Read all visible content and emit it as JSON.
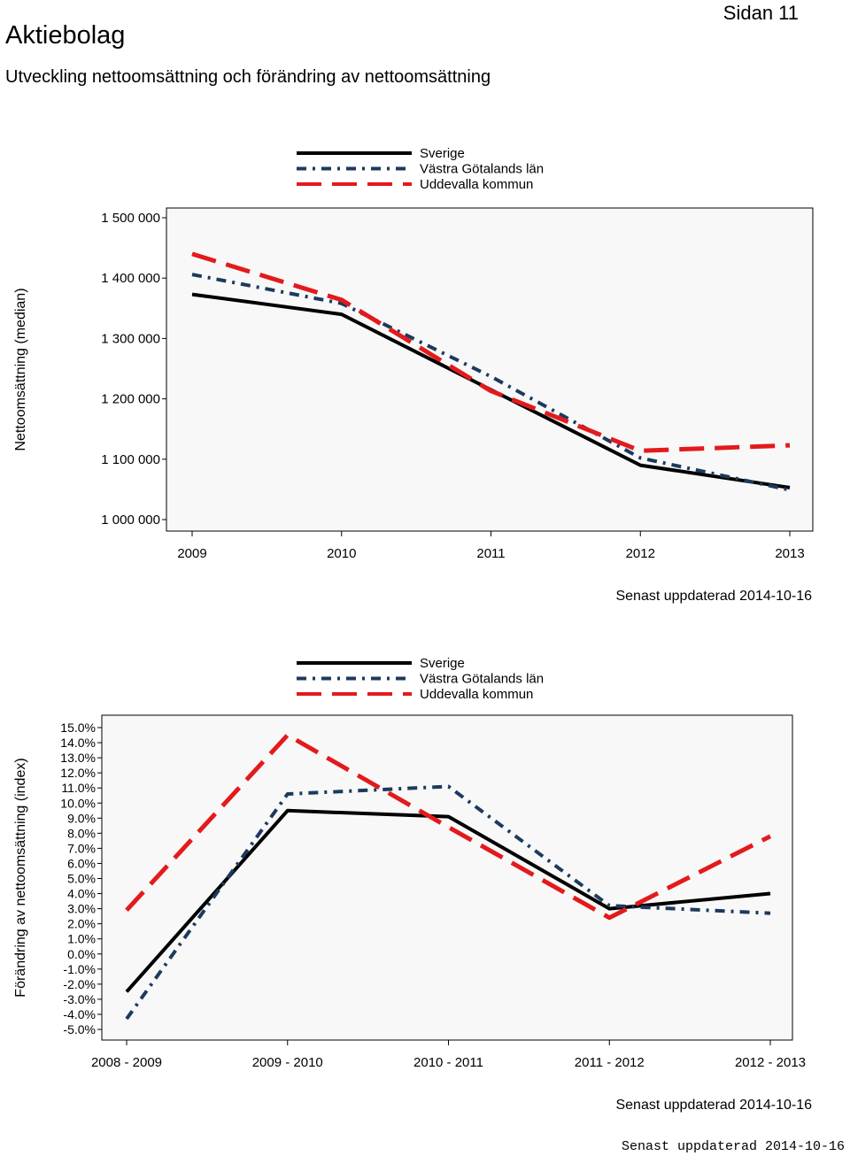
{
  "header": {
    "title": "Aktiebolag",
    "page_number": "Sidan 11",
    "subtitle": "Utveckling nettoomsättning och förändring av nettoomsättning"
  },
  "footer": {
    "stamp": "Senast uppdaterad 2014-10-16"
  },
  "colors": {
    "sverige": "#000000",
    "vastra_gotaland": "#1c3a5e",
    "uddevalla": "#e31a1c",
    "plot_background": "#f8f8f8"
  },
  "chart_data": [
    {
      "type": "line",
      "ylabel": "Nettoomsättning (median)",
      "xlabel": "",
      "categories": [
        "2009",
        "2010",
        "2011",
        "2012",
        "2013"
      ],
      "ylim": [
        1000000,
        1500000
      ],
      "yticks": [
        1000000,
        1100000,
        1200000,
        1300000,
        1400000,
        1500000
      ],
      "ytick_labels": [
        "1 000 000",
        "1 100 000",
        "1 200 000",
        "1 300 000",
        "1 400 000",
        "1 500 000"
      ],
      "legend_position": "top",
      "series": [
        {
          "name": "Sverige",
          "style": "solid",
          "values": [
            1373000,
            1340000,
            1215000,
            1090000,
            1053000
          ]
        },
        {
          "name": "Västra Götalands län",
          "style": "dash-dot",
          "values": [
            1406000,
            1358000,
            1237000,
            1102000,
            1049000
          ]
        },
        {
          "name": "Uddevalla kommun",
          "style": "long-dash",
          "values": [
            1440000,
            1364000,
            1213000,
            1114000,
            1123000
          ]
        }
      ],
      "note": "Senast uppdaterad 2014-10-16"
    },
    {
      "type": "line",
      "ylabel": "Förändring av nettoomsättning (index)",
      "xlabel": "",
      "categories": [
        "2008 - 2009",
        "2009 - 2010",
        "2010 - 2011",
        "2011 - 2012",
        "2012 - 2013"
      ],
      "ylim": [
        -5.0,
        15.0
      ],
      "yticks": [
        15,
        14,
        13,
        12,
        11,
        10,
        9,
        8,
        7,
        6,
        5,
        4,
        3,
        2,
        1,
        0,
        -1,
        -2,
        -3,
        -4,
        -5
      ],
      "ytick_labels": [
        "15.0%",
        "14.0%",
        "13.0%",
        "12.0%",
        "11.0%",
        "10.0%",
        "9.0%",
        "8.0%",
        "7.0%",
        "6.0%",
        "5.0%",
        "4.0%",
        "3.0%",
        "2.0%",
        "1.0%",
        "0.0%",
        "-1.0%",
        "-2.0%",
        "-3.0%",
        "-4.0%",
        "-5.0%"
      ],
      "legend_position": "top",
      "series": [
        {
          "name": "Sverige",
          "style": "solid",
          "values": [
            -2.5,
            9.5,
            9.1,
            3.0,
            4.0
          ]
        },
        {
          "name": "Västra Götalands län",
          "style": "dash-dot",
          "values": [
            -4.3,
            10.6,
            11.1,
            3.2,
            2.7
          ]
        },
        {
          "name": "Uddevalla kommun",
          "style": "long-dash",
          "values": [
            2.9,
            14.5,
            8.4,
            2.4,
            7.8
          ]
        }
      ],
      "note": "Senast uppdaterad 2014-10-16"
    }
  ]
}
